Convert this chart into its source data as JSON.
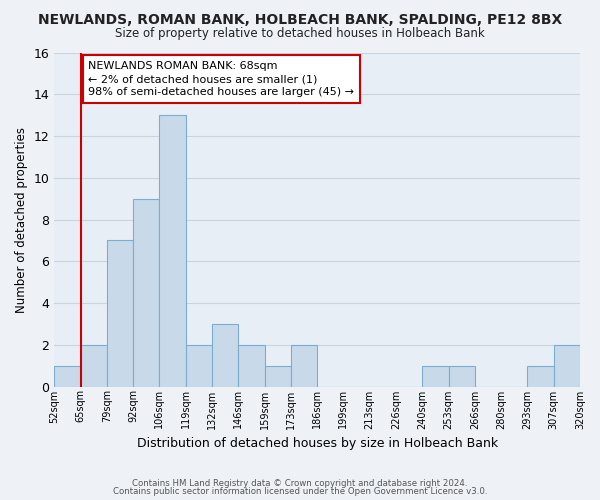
{
  "title": "NEWLANDS, ROMAN BANK, HOLBEACH BANK, SPALDING, PE12 8BX",
  "subtitle": "Size of property relative to detached houses in Holbeach Bank",
  "xlabel": "Distribution of detached houses by size in Holbeach Bank",
  "ylabel": "Number of detached properties",
  "bin_labels": [
    "52sqm",
    "65sqm",
    "79sqm",
    "92sqm",
    "106sqm",
    "119sqm",
    "132sqm",
    "146sqm",
    "159sqm",
    "173sqm",
    "186sqm",
    "199sqm",
    "213sqm",
    "226sqm",
    "240sqm",
    "253sqm",
    "266sqm",
    "280sqm",
    "293sqm",
    "307sqm",
    "320sqm"
  ],
  "bar_heights": [
    1,
    2,
    7,
    9,
    13,
    2,
    3,
    2,
    1,
    2,
    0,
    0,
    0,
    0,
    1,
    1,
    0,
    0,
    1,
    2,
    0
  ],
  "bar_color": "#c8daea",
  "bar_edge_color": "#7badd1",
  "ylim": [
    0,
    16
  ],
  "yticks": [
    0,
    2,
    4,
    6,
    8,
    10,
    12,
    14,
    16
  ],
  "annotation_title": "NEWLANDS ROMAN BANK: 68sqm",
  "annotation_line1": "← 2% of detached houses are smaller (1)",
  "annotation_line2": "98% of semi-detached houses are larger (45) →",
  "footer1": "Contains HM Land Registry data © Crown copyright and database right 2024.",
  "footer2": "Contains public sector information licensed under the Open Government Licence v3.0.",
  "background_color": "#eef2f7",
  "plot_bg_color": "#e8eef5",
  "grid_color": "#c8d4e0",
  "red_line_color": "#cc0000",
  "annotation_box_color": "#ffffff",
  "annotation_box_edge": "#cc0000",
  "red_line_bar_index": 1
}
